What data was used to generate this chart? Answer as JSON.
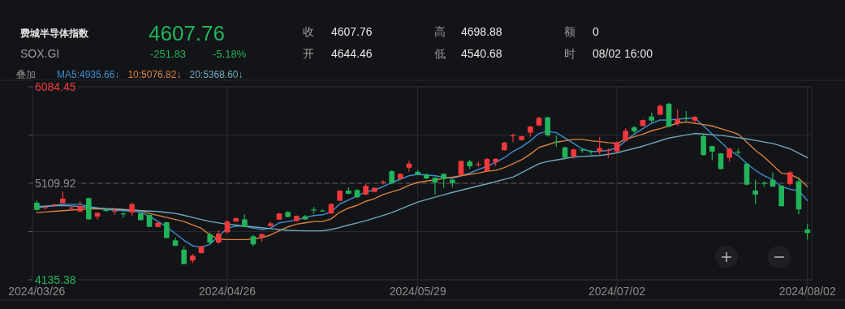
{
  "chart_data": {
    "type": "candlestick",
    "title": "费城半导体指数",
    "subtitle": "SOX.GI",
    "annotations": [
      "4607.76",
      "-251.83",
      "-5.18%",
      "收",
      "4607.76",
      "开",
      "4644.46",
      "高",
      "4698.88",
      "低",
      "4540.68",
      "额",
      "0",
      "时",
      "08/02 16:00",
      "叠加"
    ],
    "categories": [
      "2024/03/26",
      null,
      null,
      null,
      null,
      null,
      null,
      null,
      null,
      null,
      null,
      null,
      null,
      null,
      null,
      null,
      null,
      null,
      null,
      null,
      null,
      null,
      "2024/04/26",
      null,
      null,
      null,
      null,
      null,
      null,
      null,
      null,
      null,
      null,
      null,
      null,
      null,
      null,
      null,
      null,
      null,
      null,
      null,
      null,
      null,
      "2024/05/29",
      null,
      null,
      null,
      null,
      null,
      null,
      null,
      null,
      null,
      null,
      null,
      null,
      null,
      null,
      null,
      null,
      null,
      null,
      null,
      null,
      null,
      null,
      "2024/07/02",
      null,
      null,
      null,
      null,
      null,
      null,
      null,
      null,
      null,
      null,
      null,
      null,
      null,
      null,
      null,
      null,
      null,
      null,
      null,
      null,
      null,
      "2024/08/02"
    ],
    "ohlc": [
      [
        4914,
        4933,
        4833,
        4841
      ],
      [
        4865,
        4880,
        4845,
        4870
      ],
      [
        4885,
        4905,
        4875,
        4895
      ],
      [
        4909,
        5023,
        4909,
        4955
      ],
      [
        4860,
        4875,
        4845,
        4865
      ],
      [
        4825,
        4928,
        4820,
        4879
      ],
      [
        4960,
        4965,
        4740,
        4746
      ],
      [
        4773,
        4820,
        4746,
        4811
      ],
      [
        4845,
        4855,
        4825,
        4830
      ],
      [
        4830,
        4860,
        4790,
        4832
      ],
      [
        4805,
        4820,
        4765,
        4800
      ],
      [
        4814,
        4915,
        4780,
        4900
      ],
      [
        4808,
        4810,
        4735,
        4738
      ],
      [
        4792,
        4795,
        4665,
        4670
      ],
      [
        4670,
        4720,
        4665,
        4710
      ],
      [
        4716,
        4720,
        4555,
        4558
      ],
      [
        4534,
        4561,
        4475,
        4479
      ],
      [
        4439,
        4471,
        4290,
        4295
      ],
      [
        4330,
        4398,
        4303,
        4379
      ],
      [
        4406,
        4480,
        4400,
        4471
      ],
      [
        4594,
        4615,
        4493,
        4512
      ],
      [
        4512,
        4634,
        4500,
        4602
      ],
      [
        4615,
        4740,
        4605,
        4724
      ],
      [
        4724,
        4765,
        4720,
        4757
      ],
      [
        4746,
        4797,
        4665,
        4670
      ],
      [
        4575,
        4590,
        4475,
        4493
      ],
      [
        4567,
        4605,
        4520,
        4597
      ],
      [
        4678,
        4720,
        4670,
        4705
      ],
      [
        4743,
        4810,
        4740,
        4805
      ],
      [
        4819,
        4830,
        4765,
        4770
      ],
      [
        4729,
        4785,
        4720,
        4781
      ],
      [
        4777,
        4790,
        4740,
        4746
      ],
      [
        4845,
        4870,
        4800,
        4840
      ],
      [
        4835,
        4850,
        4825,
        4830
      ],
      [
        4806,
        4910,
        4800,
        4900
      ],
      [
        4933,
        5040,
        4930,
        5036
      ],
      [
        5036,
        5069,
        5000,
        5004
      ],
      [
        5042,
        5050,
        4960,
        4969
      ],
      [
        4996,
        5105,
        4990,
        5085
      ],
      [
        5023,
        5070,
        5018,
        5064
      ],
      [
        5120,
        5140,
        5100,
        5125
      ],
      [
        5232,
        5240,
        5100,
        5112
      ],
      [
        5153,
        5210,
        5150,
        5205
      ],
      [
        5267,
        5341,
        5227,
        5308
      ],
      [
        5226,
        5248,
        5195,
        5200
      ],
      [
        5200,
        5210,
        5150,
        5159
      ],
      [
        5167,
        5172,
        4996,
        5118
      ],
      [
        5205,
        5210,
        5064,
        5151
      ],
      [
        5145,
        5150,
        5072,
        5112
      ],
      [
        5194,
        5340,
        5190,
        5335
      ],
      [
        5330,
        5349,
        5254,
        5281
      ],
      [
        5300,
        5330,
        5275,
        5305
      ],
      [
        5232,
        5365,
        5225,
        5355
      ],
      [
        5322,
        5362,
        5286,
        5357
      ],
      [
        5444,
        5530,
        5440,
        5520
      ],
      [
        5590,
        5612,
        5526,
        5595
      ],
      [
        5547,
        5590,
        5540,
        5585
      ],
      [
        5621,
        5690,
        5580,
        5683
      ],
      [
        5694,
        5784,
        5690,
        5770
      ],
      [
        5776,
        5780,
        5580,
        5594
      ],
      [
        5530,
        5594,
        5478,
        5525
      ],
      [
        5472,
        5480,
        5360,
        5368
      ],
      [
        5384,
        5460,
        5357,
        5452
      ],
      [
        5450,
        5462,
        5420,
        5445
      ],
      [
        5435,
        5445,
        5400,
        5430
      ],
      [
        5431,
        5575,
        5403,
        5466
      ],
      [
        5440,
        5462,
        5365,
        5445
      ],
      [
        5431,
        5530,
        5420,
        5526
      ],
      [
        5540,
        5667,
        5535,
        5640
      ],
      [
        5675,
        5689,
        5613,
        5635
      ],
      [
        5689,
        5755,
        5685,
        5749
      ],
      [
        5784,
        5825,
        5716,
        5743
      ],
      [
        5803,
        5906,
        5797,
        5893
      ],
      [
        5914,
        5920,
        5675,
        5683
      ],
      [
        5716,
        5860,
        5689,
        5757
      ],
      [
        5770,
        5838,
        5740,
        5765
      ],
      [
        5743,
        5790,
        5716,
        5780
      ],
      [
        5586,
        5610,
        5390,
        5395
      ],
      [
        5485,
        5490,
        5341,
        5430
      ],
      [
        5412,
        5415,
        5250,
        5254
      ],
      [
        5368,
        5470,
        5330,
        5458
      ],
      [
        5430,
        5460,
        5400,
        5425
      ],
      [
        5308,
        5310,
        5090,
        5096
      ],
      [
        5037,
        5145,
        4900,
        4996
      ],
      [
        5115,
        5130,
        5075,
        5110
      ],
      [
        5145,
        5221,
        5070,
        5077
      ],
      [
        5086,
        5090,
        4875,
        4879
      ],
      [
        5104,
        5230,
        5090,
        5221
      ],
      [
        5131,
        5172,
        4797,
        4846
      ],
      [
        4644.46,
        4698.88,
        4540.68,
        4607.76
      ]
    ],
    "series": [
      {
        "name": "MA5:4935.66↓",
        "type": "line",
        "color": "#3d8fd0",
        "values": [
          4860,
          4874,
          4887,
          4898,
          4898,
          4898,
          4874,
          4860,
          4846,
          4840,
          4833,
          4826,
          4819,
          4778,
          4724,
          4670,
          4602,
          4534,
          4479,
          4466,
          4493,
          4575,
          4656,
          4678,
          4678,
          4656,
          4643,
          4656,
          4711,
          4724,
          4738,
          4765,
          4784,
          4792,
          4819,
          4901,
          4941,
          4982,
          5023,
          5042,
          5077,
          5118,
          5151,
          5186,
          5200,
          5194,
          5186,
          5172,
          5159,
          5186,
          5213,
          5249,
          5281,
          5322,
          5368,
          5431,
          5477,
          5539,
          5613,
          5635,
          5621,
          5567,
          5512,
          5458,
          5431,
          5431,
          5444,
          5466,
          5539,
          5607,
          5662,
          5716,
          5749,
          5749,
          5757,
          5765,
          5770,
          5689,
          5607,
          5526,
          5444,
          5390,
          5308,
          5241,
          5186,
          5145,
          5077,
          5050,
          5036,
          4935.66
        ]
      },
      {
        "name": "10:5076.82↓",
        "type": "line",
        "color": "#d9813f",
        "values": [
          4814,
          4820,
          4827,
          4833,
          4840,
          4846,
          4852,
          4852,
          4852,
          4852,
          4846,
          4840,
          4833,
          4806,
          4785,
          4765,
          4745,
          4724,
          4690,
          4656,
          4588,
          4547,
          4542,
          4542,
          4542,
          4547,
          4561,
          4588,
          4629,
          4670,
          4697,
          4711,
          4724,
          4724,
          4751,
          4819,
          4860,
          4887,
          4928,
          4955,
          4996,
          5023,
          5050,
          5091,
          5118,
          5132,
          5145,
          5159,
          5172,
          5186,
          5200,
          5213,
          5232,
          5240,
          5268,
          5308,
          5349,
          5404,
          5472,
          5499,
          5526,
          5539,
          5553,
          5553,
          5539,
          5531,
          5520,
          5512,
          5553,
          5580,
          5607,
          5640,
          5662,
          5689,
          5716,
          5730,
          5716,
          5703,
          5689,
          5662,
          5635,
          5607,
          5526,
          5444,
          5376,
          5295,
          5213,
          5200,
          5159,
          5076.82
        ]
      },
      {
        "name": "20:5368.60↓",
        "type": "line",
        "color": "#6fa9bd",
        "values": [
          4874,
          4878,
          4883,
          4887,
          4882,
          4875,
          4868,
          4860,
          4853,
          4846,
          4842,
          4838,
          4833,
          4829,
          4825,
          4815,
          4806,
          4786,
          4765,
          4745,
          4724,
          4710,
          4697,
          4688,
          4678,
          4670,
          4662,
          4652,
          4643,
          4635,
          4632,
          4630,
          4630,
          4630,
          4643,
          4665,
          4688,
          4710,
          4732,
          4759,
          4786,
          4814,
          4849,
          4885,
          4920,
          4945,
          4970,
          4994,
          5018,
          5040,
          5061,
          5083,
          5104,
          5127,
          5150,
          5172,
          5217,
          5263,
          5308,
          5330,
          5345,
          5360,
          5376,
          5381,
          5386,
          5390,
          5403,
          5417,
          5440,
          5462,
          5485,
          5512,
          5540,
          5567,
          5582,
          5598,
          5613,
          5607,
          5600,
          5594,
          5582,
          5570,
          5558,
          5543,
          5527,
          5512,
          5485,
          5458,
          5413,
          5368.6
        ]
      }
    ],
    "ylim": [
      4135.38,
      6084.45
    ],
    "yticks": [
      4135.38,
      {
        "value": 4622.65,
        "label": null
      },
      5109.92,
      {
        "value": 5597.19,
        "label": null
      },
      6084.45
    ],
    "ref_lines": [
      {
        "axis": "y",
        "value": 5109.92,
        "line_style": "dashed"
      }
    ],
    "grid": true,
    "legend": "top left"
  }
}
